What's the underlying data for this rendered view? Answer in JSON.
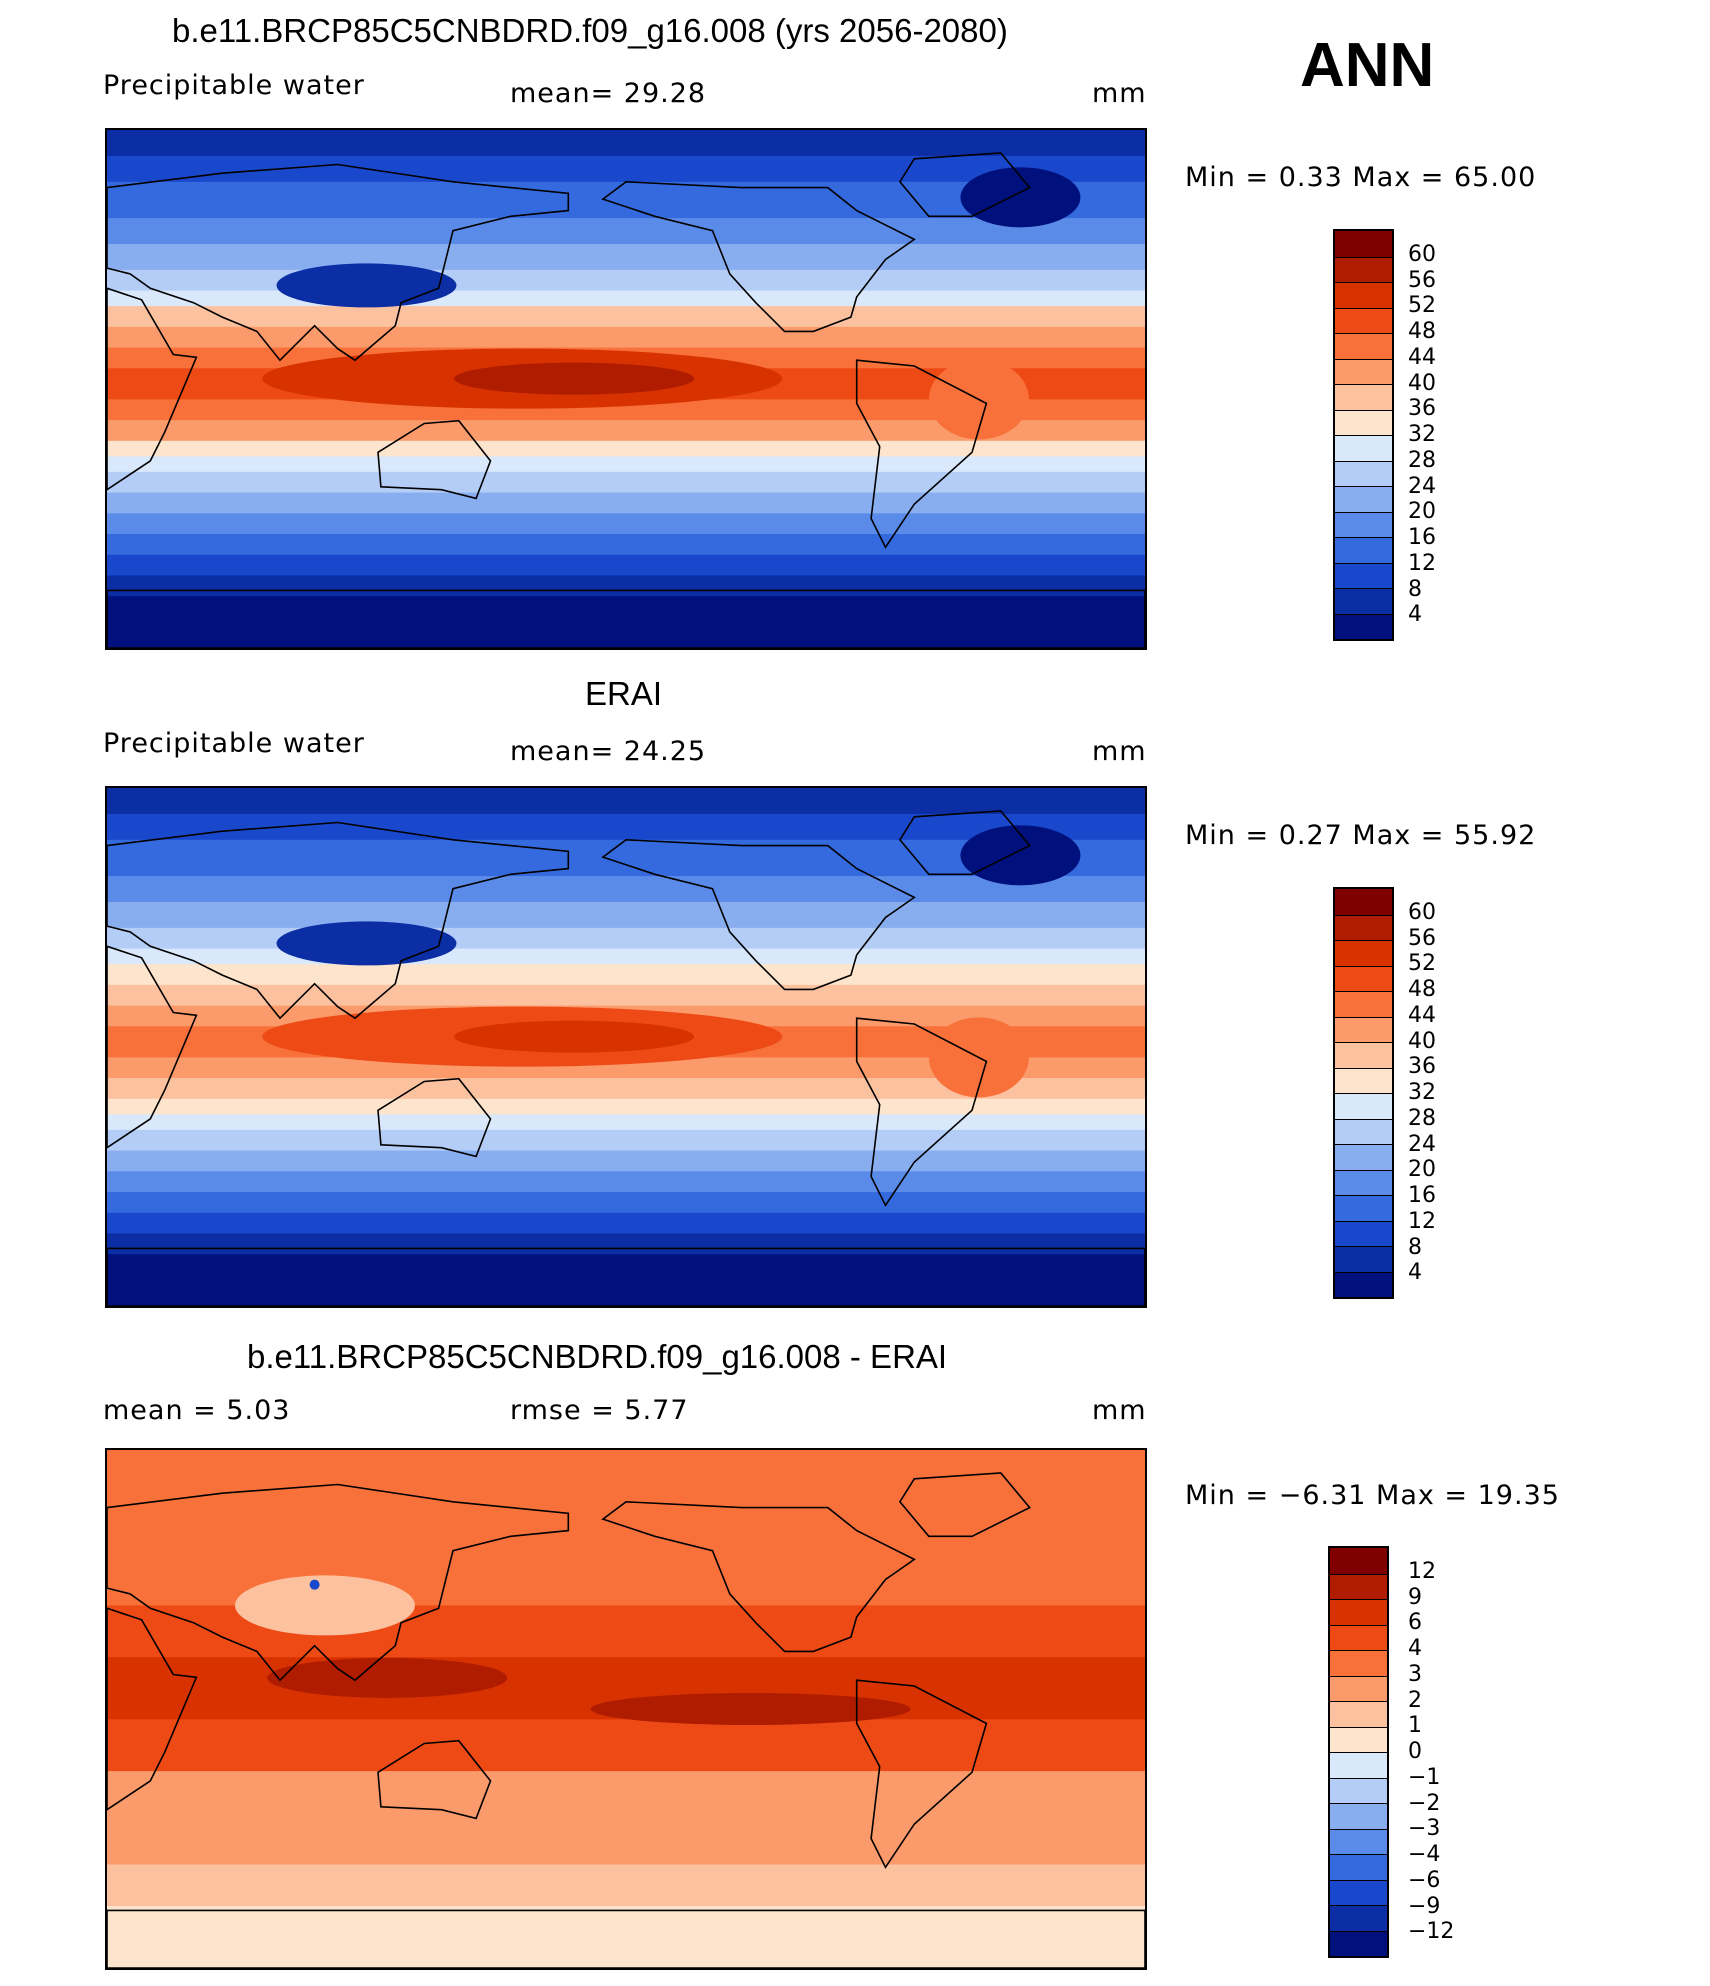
{
  "season": "ANN",
  "panels": [
    {
      "title": "b.e11.BRCP85C5CNBDRD.f09_g16.008 (yrs 2056-2080)",
      "left_label": "Precipitable  water",
      "mid_label": "mean=   29.28",
      "units": "mm",
      "minmax": "Min  =     0.33  Max  =    65.00",
      "field": "model",
      "colorbar": {
        "colors": [
          "#800000",
          "#b01c00",
          "#d83200",
          "#ee4a16",
          "#f8713a",
          "#fb9a6a",
          "#fcc2a0",
          "#fde4cc",
          "#d9e8fa",
          "#b3cdf6",
          "#88aef0",
          "#5a8be8",
          "#346ade",
          "#1a48cc",
          "#0c2ea4",
          "#00107c"
        ],
        "ticks": [
          "60",
          "56",
          "52",
          "48",
          "44",
          "40",
          "36",
          "32",
          "28",
          "24",
          "20",
          "16",
          "12",
          "8",
          "4"
        ]
      }
    },
    {
      "title": "ERAI",
      "left_label": "Precipitable  water",
      "mid_label": "mean=   24.25",
      "units": "mm",
      "minmax": "Min  =     0.27  Max  =    55.92",
      "field": "obs",
      "colorbar": {
        "colors": [
          "#800000",
          "#b01c00",
          "#d83200",
          "#ee4a16",
          "#f8713a",
          "#fb9a6a",
          "#fcc2a0",
          "#fde4cc",
          "#d9e8fa",
          "#b3cdf6",
          "#88aef0",
          "#5a8be8",
          "#346ade",
          "#1a48cc",
          "#0c2ea4",
          "#00107c"
        ],
        "ticks": [
          "60",
          "56",
          "52",
          "48",
          "44",
          "40",
          "36",
          "32",
          "28",
          "24",
          "20",
          "16",
          "12",
          "8",
          "4"
        ]
      }
    },
    {
      "title": "b.e11.BRCP85C5CNBDRD.f09_g16.008 - ERAI",
      "left_label": "mean  =      5.03",
      "mid_label": "rmse  =      5.77",
      "units": "mm",
      "minmax": "Min  =    −6.31  Max  =    19.35",
      "field": "diff",
      "colorbar": {
        "colors": [
          "#800000",
          "#b01c00",
          "#d83200",
          "#ee4a16",
          "#f8713a",
          "#fb9a6a",
          "#fcc2a0",
          "#fde4cc",
          "#d9e8fa",
          "#b3cdf6",
          "#88aef0",
          "#5a8be8",
          "#346ade",
          "#1a48cc",
          "#0c2ea4",
          "#00107c"
        ],
        "ticks": [
          "12",
          "9",
          "6",
          "4",
          "3",
          "2",
          "1",
          "0",
          "−1",
          "−2",
          "−3",
          "−4",
          "−6",
          "−9",
          "−12"
        ]
      }
    }
  ]
}
